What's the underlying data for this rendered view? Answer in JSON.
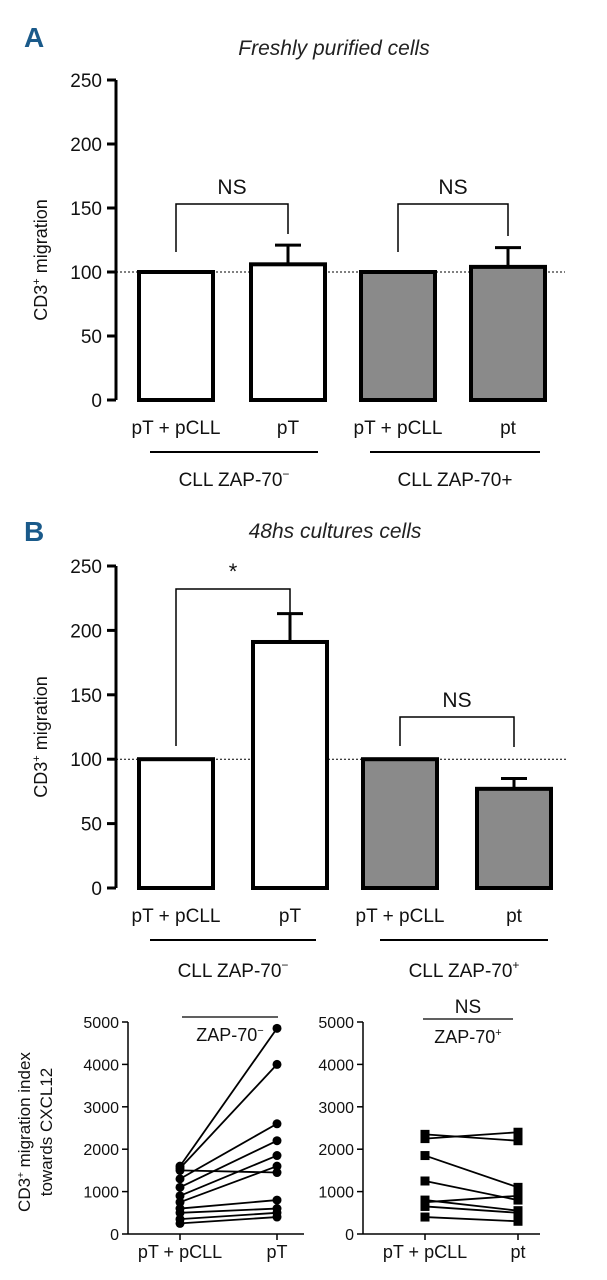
{
  "colors": {
    "white_bar": "#ffffff",
    "grey_bar": "#8a8a8a",
    "stroke": "#000000",
    "panel_letter": "#1a5a8a"
  },
  "chart_data": [
    {
      "id": "A",
      "type": "bar",
      "panel_label": "A",
      "title": "Freshly purified cells",
      "ylabel": "CD3+ migration",
      "ylabel_main": "CD3",
      "ylabel_sup": "+",
      "ylabel_rest": " migration",
      "ylim": [
        0,
        250
      ],
      "yticks": [
        "0",
        "50",
        "100",
        "150",
        "200",
        "250"
      ],
      "reference_line": 100,
      "categories": [
        "pT + pCLL",
        "pT",
        "pT + pCLL",
        "pt"
      ],
      "values": [
        100,
        106,
        100,
        104
      ],
      "errors": [
        0,
        15,
        0,
        15
      ],
      "bar_colors": [
        "white",
        "white",
        "grey",
        "grey"
      ],
      "groups": [
        {
          "label_main": "CLL ZAP-70",
          "label_sup": "−"
        },
        {
          "label_main": "CLL ZAP-70+",
          "label_sup": ""
        }
      ],
      "significance": [
        {
          "pair": [
            0,
            1
          ],
          "text": "NS"
        },
        {
          "pair": [
            2,
            3
          ],
          "text": "NS"
        }
      ]
    },
    {
      "id": "B",
      "type": "bar",
      "panel_label": "B",
      "title": "48hs cultures cells",
      "ylabel": "CD3+ migration",
      "ylabel_main": "CD3",
      "ylabel_sup": "+",
      "ylabel_rest": " migration",
      "ylim": [
        0,
        250
      ],
      "yticks": [
        "0",
        "50",
        "100",
        "150",
        "200",
        "250"
      ],
      "reference_line": 100,
      "categories": [
        "pT + pCLL",
        "pT",
        "pT + pCLL",
        "pt"
      ],
      "values": [
        100,
        191,
        100,
        77
      ],
      "errors": [
        0,
        22,
        0,
        8
      ],
      "bar_colors": [
        "white",
        "white",
        "grey",
        "grey"
      ],
      "groups": [
        {
          "label_main": "CLL ZAP-70",
          "label_sup": "−"
        },
        {
          "label_main": "CLL ZAP-70",
          "label_sup": "+"
        }
      ],
      "significance": [
        {
          "pair": [
            0,
            1
          ],
          "text": "*"
        },
        {
          "pair": [
            2,
            3
          ],
          "text": "NS"
        }
      ]
    },
    {
      "id": "C",
      "type": "line",
      "title": "",
      "label_main": "ZAP-70",
      "label_sup": "−",
      "ylabel_line1_main": "CD3",
      "ylabel_line1_sup": "+",
      "ylabel_line1_rest": " migration index",
      "ylabel_line2": "towards CXCL12",
      "ylim": [
        0,
        5000
      ],
      "yticks": [
        "0",
        "1000",
        "2000",
        "3000",
        "4000",
        "5000"
      ],
      "categories": [
        "pT + pCLL",
        "pT"
      ],
      "marker": "circle",
      "series": [
        {
          "values": [
            250,
            400
          ]
        },
        {
          "values": [
            350,
            500
          ]
        },
        {
          "values": [
            500,
            600
          ]
        },
        {
          "values": [
            600,
            800
          ]
        },
        {
          "values": [
            750,
            1600
          ]
        },
        {
          "values": [
            900,
            1850
          ]
        },
        {
          "values": [
            1100,
            2200
          ]
        },
        {
          "values": [
            1300,
            2600
          ]
        },
        {
          "values": [
            1500,
            1450
          ]
        },
        {
          "values": [
            1550,
            4000
          ]
        },
        {
          "values": [
            1600,
            4850
          ]
        }
      ]
    },
    {
      "id": "D",
      "type": "line",
      "title": "",
      "label_main": "ZAP-70",
      "label_sup": "+",
      "significance_text": "NS",
      "ylim": [
        0,
        5000
      ],
      "yticks": [
        "0",
        "1000",
        "2000",
        "3000",
        "4000",
        "5000"
      ],
      "categories": [
        "pT + pCLL",
        "pt"
      ],
      "marker": "square",
      "series": [
        {
          "values": [
            400,
            300
          ]
        },
        {
          "values": [
            650,
            500
          ]
        },
        {
          "values": [
            750,
            900
          ]
        },
        {
          "values": [
            800,
            550
          ]
        },
        {
          "values": [
            1250,
            800
          ]
        },
        {
          "values": [
            1850,
            1100
          ]
        },
        {
          "values": [
            2250,
            2400
          ]
        },
        {
          "values": [
            2350,
            2200
          ]
        }
      ]
    }
  ]
}
